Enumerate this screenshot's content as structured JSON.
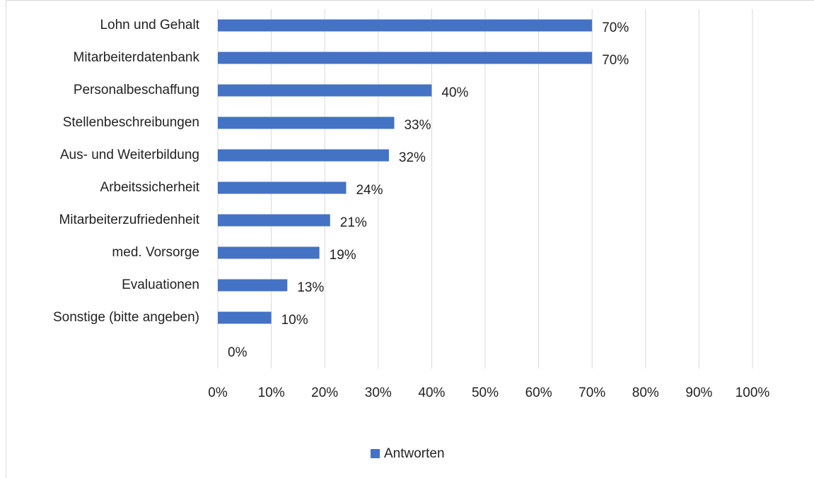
{
  "chart_data": {
    "type": "bar",
    "orientation": "horizontal",
    "categories": [
      "Lohn und Gehalt",
      "Mitarbeiterdatenbank",
      "Personalbeschaffung",
      "Stellenbeschreibungen",
      "Aus- und Weiterbildung",
      "Arbeitssicherheit",
      "Mitarbeiterzufriedenheit",
      "med. Vorsorge",
      "Evaluationen",
      "Sonstige (bitte angeben)",
      null
    ],
    "series": [
      {
        "name": "Antworten",
        "color": "#4472c4",
        "values": [
          70,
          70,
          40,
          33,
          32,
          24,
          21,
          19,
          13,
          10,
          0
        ],
        "value_labels": [
          "70%",
          "70%",
          "40%",
          "33%",
          "32%",
          "24%",
          "21%",
          "19%",
          "13%",
          "10%",
          "0%"
        ]
      }
    ],
    "xlim": [
      0,
      100
    ],
    "xticks": [
      {
        "value": 0,
        "label": "0%"
      },
      {
        "value": 10,
        "label": "10%"
      },
      {
        "value": 20,
        "label": "20%"
      },
      {
        "value": 30,
        "label": "30%"
      },
      {
        "value": 40,
        "label": "40%"
      },
      {
        "value": 50,
        "label": "50%"
      },
      {
        "value": 60,
        "label": "60%"
      },
      {
        "value": 70,
        "label": "70%"
      },
      {
        "value": 80,
        "label": "80%"
      },
      {
        "value": 90,
        "label": "90%"
      },
      {
        "value": 100,
        "label": "100%"
      }
    ],
    "grid": true,
    "legend": "bottom"
  }
}
